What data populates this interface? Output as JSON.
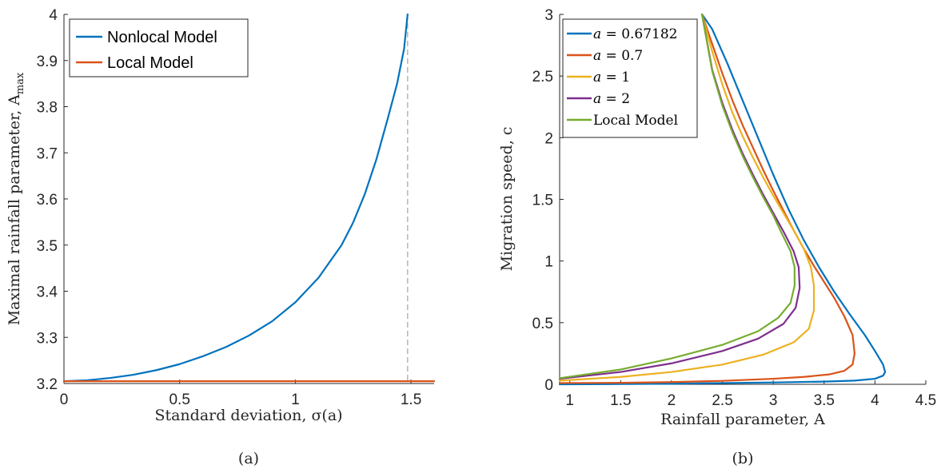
{
  "chart_data": [
    {
      "panel": "a",
      "type": "line",
      "caption": "(a)",
      "xlabel": "Standard deviation, σ(a)",
      "ylabel": "Maximal rainfall parameter, A",
      "ylabel_subscript": "max",
      "xlim": [
        0,
        1.6
      ],
      "ylim": [
        3.2,
        4.0
      ],
      "xticks": [
        0,
        0.5,
        1,
        1.5
      ],
      "xtick_labels": [
        "0",
        "0.5",
        "1",
        "1.5"
      ],
      "yticks": [
        3.2,
        3.3,
        3.4,
        3.5,
        3.6,
        3.7,
        3.8,
        3.9,
        4.0
      ],
      "ytick_labels": [
        "3.2",
        "3.3",
        "3.4",
        "3.5",
        "3.6",
        "3.7",
        "3.8",
        "3.9",
        "4"
      ],
      "legend_position": "top-left",
      "vline": {
        "x": 1.4854,
        "style": "dashed",
        "color": "#aaaaaa"
      },
      "series": [
        {
          "name": "Nonlocal Model",
          "color": "#0072BD",
          "x": [
            0,
            0.1,
            0.2,
            0.3,
            0.4,
            0.5,
            0.6,
            0.7,
            0.8,
            0.9,
            1.0,
            1.1,
            1.2,
            1.25,
            1.3,
            1.35,
            1.4,
            1.44,
            1.47,
            1.4854
          ],
          "y": [
            3.205,
            3.207,
            3.212,
            3.219,
            3.229,
            3.242,
            3.259,
            3.279,
            3.304,
            3.335,
            3.376,
            3.429,
            3.5,
            3.549,
            3.61,
            3.685,
            3.775,
            3.85,
            3.925,
            4.0
          ]
        },
        {
          "name": "Local Model",
          "color": "#D95319",
          "x": [
            0,
            1.6
          ],
          "y": [
            3.205,
            3.205
          ]
        }
      ]
    },
    {
      "panel": "b",
      "type": "line",
      "caption": "(b)",
      "xlabel": "Rainfall parameter, A",
      "ylabel": "Migration speed, c",
      "xlim": [
        0.9,
        4.5
      ],
      "ylim": [
        0,
        3
      ],
      "xticks": [
        1,
        1.5,
        2,
        2.5,
        3,
        3.5,
        4,
        4.5
      ],
      "xtick_labels": [
        "1",
        "1.5",
        "2",
        "2.5",
        "3",
        "3.5",
        "4",
        "4.5"
      ],
      "yticks": [
        0,
        0.5,
        1,
        1.5,
        2,
        2.5,
        3
      ],
      "ytick_labels": [
        "0",
        "0.5",
        "1",
        "1.5",
        "2",
        "2.5",
        "3"
      ],
      "legend_position": "top-left",
      "series": [
        {
          "name": "a = 0.67182",
          "legend_var": "a",
          "legend_value": "= 0.67182",
          "color": "#0072BD",
          "x": [
            0.9,
            1.5,
            2.0,
            2.5,
            3.0,
            3.5,
            3.8,
            4.0,
            4.08,
            4.1,
            4.08,
            4.0,
            3.9,
            3.75,
            3.6,
            3.45,
            3.3,
            3.15,
            3.0,
            2.85,
            2.7,
            2.55,
            2.4,
            2.3
          ],
          "y": [
            0.0,
            0.002,
            0.005,
            0.01,
            0.015,
            0.022,
            0.03,
            0.045,
            0.07,
            0.1,
            0.16,
            0.27,
            0.4,
            0.57,
            0.75,
            0.95,
            1.17,
            1.42,
            1.7,
            2.0,
            2.3,
            2.6,
            2.88,
            3.0
          ]
        },
        {
          "name": "a = 0.7",
          "legend_var": "a",
          "legend_value": "= 0.7",
          "color": "#D95319",
          "x": [
            0.9,
            1.5,
            2.0,
            2.5,
            3.0,
            3.3,
            3.55,
            3.7,
            3.78,
            3.8,
            3.78,
            3.7,
            3.6,
            3.5,
            3.4,
            3.3,
            3.2,
            3.1,
            3.0,
            2.9,
            2.8,
            2.7,
            2.6,
            2.5,
            2.4,
            2.3
          ],
          "y": [
            0.01,
            0.012,
            0.018,
            0.028,
            0.045,
            0.06,
            0.08,
            0.11,
            0.16,
            0.25,
            0.4,
            0.55,
            0.7,
            0.83,
            0.96,
            1.1,
            1.25,
            1.41,
            1.57,
            1.74,
            1.92,
            2.1,
            2.3,
            2.52,
            2.76,
            3.0
          ]
        },
        {
          "name": "a = 1",
          "legend_var": "a",
          "legend_value": "= 1",
          "color": "#EDB120",
          "x": [
            0.9,
            1.5,
            2.0,
            2.5,
            2.9,
            3.2,
            3.35,
            3.4,
            3.4,
            3.37,
            3.3,
            3.2,
            3.1,
            3.0,
            2.9,
            2.8,
            2.7,
            2.6,
            2.5,
            2.4,
            2.3
          ],
          "y": [
            0.03,
            0.06,
            0.1,
            0.16,
            0.24,
            0.34,
            0.45,
            0.6,
            0.8,
            0.95,
            1.1,
            1.25,
            1.39,
            1.53,
            1.68,
            1.84,
            2.01,
            2.2,
            2.43,
            2.7,
            3.0
          ]
        },
        {
          "name": "a = 2",
          "legend_var": "a",
          "legend_value": "= 2",
          "color": "#7E2F8E",
          "x": [
            0.9,
            1.5,
            2.0,
            2.5,
            2.85,
            3.1,
            3.22,
            3.26,
            3.25,
            3.2,
            3.1,
            3.0,
            2.9,
            2.8,
            2.7,
            2.6,
            2.5,
            2.4,
            2.3
          ],
          "y": [
            0.045,
            0.1,
            0.17,
            0.27,
            0.37,
            0.49,
            0.62,
            0.78,
            0.95,
            1.08,
            1.24,
            1.39,
            1.54,
            1.7,
            1.87,
            2.06,
            2.28,
            2.55,
            3.0
          ]
        },
        {
          "name": "Local Model",
          "legend_var": "",
          "legend_value": "Local Model",
          "color": "#77AC30",
          "x": [
            0.9,
            1.5,
            2.0,
            2.5,
            2.85,
            3.05,
            3.17,
            3.21,
            3.21,
            3.17,
            3.08,
            3.0,
            2.9,
            2.8,
            2.7,
            2.6,
            2.5,
            2.4,
            2.3
          ],
          "y": [
            0.05,
            0.12,
            0.21,
            0.32,
            0.43,
            0.54,
            0.66,
            0.8,
            0.95,
            1.08,
            1.23,
            1.37,
            1.52,
            1.68,
            1.85,
            2.04,
            2.26,
            2.54,
            3.0
          ]
        }
      ]
    }
  ]
}
